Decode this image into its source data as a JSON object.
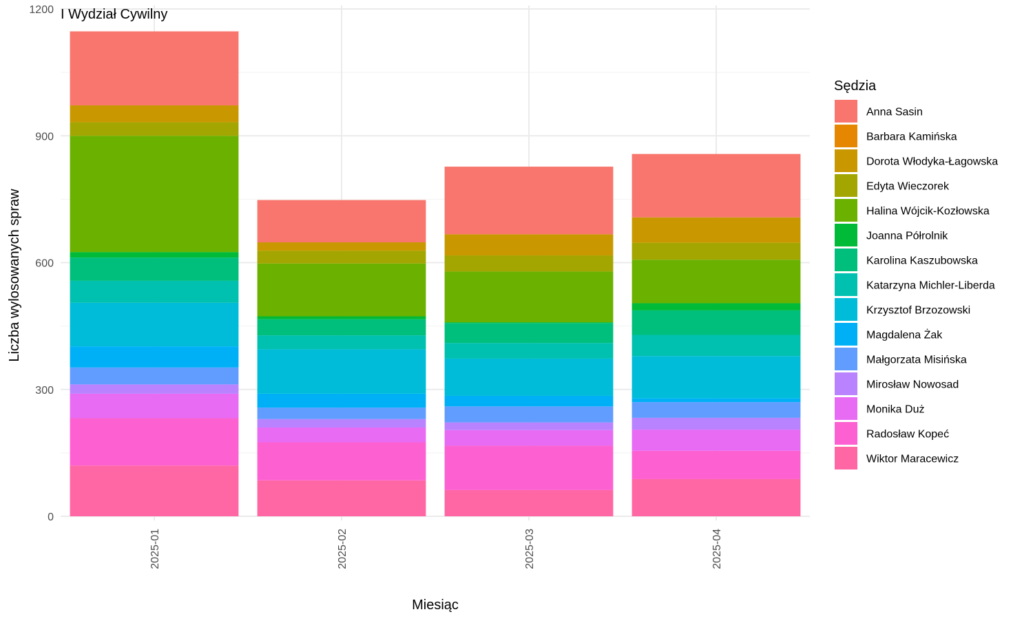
{
  "chart_data": {
    "type": "bar",
    "stacked": true,
    "title": "I Wydział Cywilny",
    "xlabel": "Miesiąc",
    "ylabel": "Liczba wylosowanych spraw",
    "ylim": [
      0,
      1200
    ],
    "yticks": [
      "0",
      "300",
      "600",
      "900",
      "1200"
    ],
    "grid": true,
    "legend_title": "Sędzia",
    "legend_position": "right",
    "categories": [
      "2025-01",
      "2025-02",
      "2025-03",
      "2025-04"
    ],
    "series": [
      {
        "name": "Anna Sasin",
        "color": "#F8766D",
        "values": [
          175,
          100,
          160,
          150
        ]
      },
      {
        "name": "Barbara Kamińska",
        "color": "#E58700",
        "values": [
          0,
          0,
          0,
          0
        ]
      },
      {
        "name": "Dorota Włodyka-Łagowska",
        "color": "#C99800",
        "values": [
          40,
          20,
          50,
          60
        ]
      },
      {
        "name": "Edyta Wieczorek",
        "color": "#A3A500",
        "values": [
          32,
          30,
          38,
          40
        ]
      },
      {
        "name": "Halina Wójcik-Kozłowska",
        "color": "#6BB100",
        "values": [
          275,
          125,
          120,
          103
        ]
      },
      {
        "name": "Joanna Półrolnik",
        "color": "#00BA38",
        "values": [
          13,
          7,
          2,
          17
        ]
      },
      {
        "name": "Karolina Kaszubowska",
        "color": "#00BF7D",
        "values": [
          55,
          38,
          47,
          58
        ]
      },
      {
        "name": "Katarzyna Michler-Liberda",
        "color": "#00C0AF",
        "values": [
          52,
          33,
          37,
          50
        ]
      },
      {
        "name": "Krzysztof Brzozowski",
        "color": "#00BCD8",
        "values": [
          103,
          105,
          88,
          100
        ]
      },
      {
        "name": "Magdalena Żak",
        "color": "#00B0F6",
        "values": [
          50,
          33,
          25,
          9
        ]
      },
      {
        "name": "Małgorzata Misińska",
        "color": "#619CFF",
        "values": [
          40,
          27,
          38,
          37
        ]
      },
      {
        "name": "Mirosław Nowosad",
        "color": "#B983FF",
        "values": [
          22,
          20,
          18,
          28
        ]
      },
      {
        "name": "Monika Duż",
        "color": "#E76BF3",
        "values": [
          58,
          35,
          37,
          50
        ]
      },
      {
        "name": "Radosław Kopeć",
        "color": "#FD61D1",
        "values": [
          112,
          90,
          105,
          67
        ]
      },
      {
        "name": "Wiktor Maracewicz",
        "color": "#FF67A4",
        "values": [
          120,
          85,
          62,
          88
        ]
      }
    ]
  }
}
